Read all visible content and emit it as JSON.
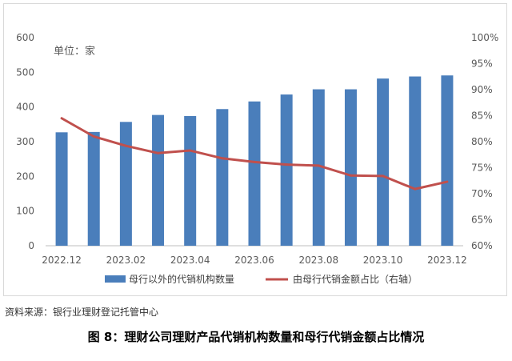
{
  "chart_data": {
    "type": "bar+line",
    "unit_label": "单位：家",
    "x_tick_labels": [
      "2022.12",
      "2023.02",
      "2023.04",
      "2023.06",
      "2023.08",
      "2023.10",
      "2023.12"
    ],
    "categories": [
      "2022.12",
      "2023.01",
      "2023.02",
      "2023.03",
      "2023.04",
      "2023.05",
      "2023.06",
      "2023.07",
      "2023.08",
      "2023.09",
      "2023.10",
      "2023.11",
      "2023.12"
    ],
    "left_axis": {
      "ylim": [
        0,
        600
      ],
      "ticks": [
        "0",
        "100",
        "200",
        "300",
        "400",
        "500",
        "600"
      ]
    },
    "right_axis": {
      "ylim": [
        60,
        100
      ],
      "ticks": [
        "60%",
        "65%",
        "70%",
        "75%",
        "80%",
        "85%",
        "90%",
        "95%",
        "100%"
      ]
    },
    "series": [
      {
        "name": "母行以外的代销机构数量",
        "kind": "bar",
        "axis": "left",
        "color": "#4a7ebb",
        "values": [
          327,
          328,
          357,
          377,
          374,
          394,
          416,
          436,
          451,
          451,
          482,
          488,
          491
        ]
      },
      {
        "name": "由母行代销金额占比（右轴）",
        "kind": "line",
        "axis": "right",
        "color": "#c0504d",
        "values": [
          84.5,
          81.0,
          79.2,
          77.8,
          78.3,
          76.8,
          76.1,
          75.6,
          75.4,
          73.5,
          73.4,
          70.9,
          72.3
        ]
      }
    ],
    "legend_position": "bottom",
    "grid": false
  },
  "source_note": "资料来源：银行业理财登记托管中心",
  "caption": "图 8：理财公司理财产品代销机构数量和母行代销金额占比情况"
}
